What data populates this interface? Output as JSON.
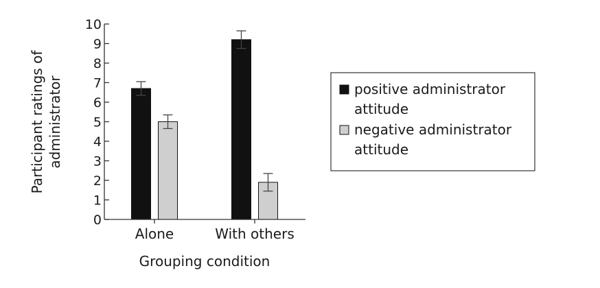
{
  "chart_data": {
    "type": "bar",
    "categories": [
      "Alone",
      "With others"
    ],
    "series": [
      {
        "name": "positive administrator attitude",
        "color": "#111111",
        "values": [
          6.7,
          9.2
        ],
        "errors": [
          0.35,
          0.45
        ]
      },
      {
        "name": "negative administrator attitude",
        "color": "#cfcfcf",
        "values": [
          5.0,
          1.9
        ],
        "errors": [
          0.35,
          0.45
        ]
      }
    ],
    "xlabel": "Grouping condition",
    "ylabel_lines": [
      "Participant ratings of",
      "administrator"
    ],
    "ylim": [
      0,
      10
    ],
    "yticks": [
      0,
      1,
      2,
      3,
      4,
      5,
      6,
      7,
      8,
      9,
      10
    ],
    "grid": false,
    "legend_position": "right",
    "legend_lines": [
      [
        "positive administrator",
        "attitude"
      ],
      [
        "negative administrator",
        "attitude"
      ]
    ]
  }
}
